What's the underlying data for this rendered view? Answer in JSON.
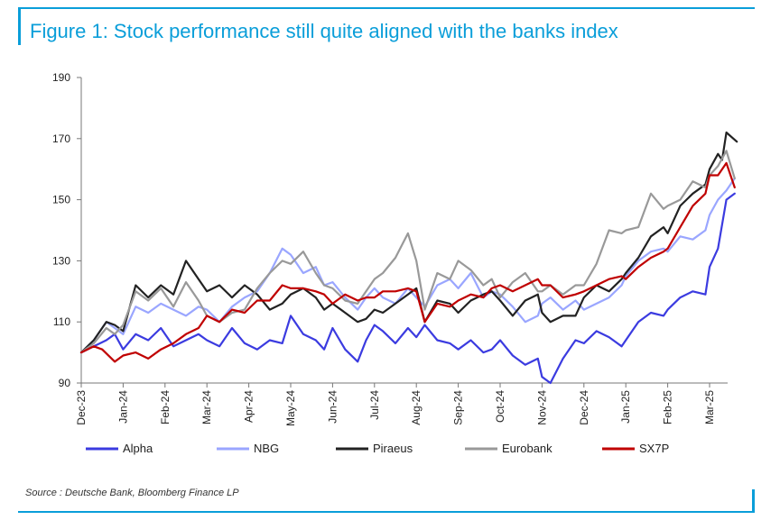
{
  "header": {
    "title": "Figure 1: Stock performance still quite aligned with the banks index"
  },
  "footer": {
    "source": "Source : Deutsche Bank, Bloomberg Finance LP"
  },
  "chart_data": {
    "type": "line",
    "title": "Figure 1: Stock performance still quite aligned with the banks index",
    "ylim": [
      90,
      190
    ],
    "yticks": [
      90,
      110,
      130,
      150,
      170,
      190
    ],
    "xlim": [
      0,
      15.65
    ],
    "x_tick_labels": [
      "Dec-23",
      "Jan-24",
      "Feb-24",
      "Mar-24",
      "Apr-24",
      "May-24",
      "Jun-24",
      "Jul-24",
      "Aug-24",
      "Sep-24",
      "Oct-24",
      "Nov-24",
      "Dec-24",
      "Jan-25",
      "Feb-25",
      "Mar-25"
    ],
    "grid": false,
    "legend": "bottom",
    "series": [
      {
        "name": "Alpha",
        "color": "#3b3be0",
        "x": [
          0,
          0.3,
          0.6,
          0.8,
          1.0,
          1.3,
          1.6,
          1.9,
          2.2,
          2.5,
          2.8,
          3.0,
          3.3,
          3.6,
          3.9,
          4.2,
          4.5,
          4.8,
          5.0,
          5.3,
          5.6,
          5.8,
          6.0,
          6.3,
          6.6,
          6.8,
          7.0,
          7.2,
          7.5,
          7.8,
          8.0,
          8.2,
          8.5,
          8.8,
          9.0,
          9.3,
          9.6,
          9.8,
          10.0,
          10.3,
          10.6,
          10.9,
          11.0,
          11.2,
          11.5,
          11.8,
          12.0,
          12.3,
          12.6,
          12.9,
          13.0,
          13.3,
          13.6,
          13.9,
          14.0,
          14.3,
          14.6,
          14.9,
          15.0,
          15.2,
          15.4,
          15.6
        ],
        "y": [
          100,
          102,
          104,
          106,
          101,
          106,
          104,
          108,
          102,
          104,
          106,
          104,
          102,
          108,
          103,
          101,
          104,
          103,
          112,
          106,
          104,
          101,
          108,
          101,
          97,
          104,
          109,
          107,
          103,
          108,
          105,
          109,
          104,
          103,
          101,
          104,
          100,
          101,
          104,
          99,
          96,
          98,
          92,
          90,
          98,
          104,
          103,
          107,
          105,
          102,
          104,
          110,
          113,
          112,
          114,
          118,
          120,
          119,
          128,
          134,
          150,
          152
        ]
      },
      {
        "name": "NBG",
        "color": "#9aa6ff",
        "x": [
          0,
          0.3,
          0.6,
          0.8,
          1.0,
          1.3,
          1.6,
          1.9,
          2.2,
          2.5,
          2.8,
          3.0,
          3.3,
          3.6,
          3.9,
          4.2,
          4.5,
          4.8,
          5.0,
          5.3,
          5.6,
          5.8,
          6.0,
          6.3,
          6.6,
          6.8,
          7.0,
          7.2,
          7.5,
          7.8,
          8.0,
          8.2,
          8.5,
          8.8,
          9.0,
          9.3,
          9.6,
          9.8,
          10.0,
          10.3,
          10.6,
          10.9,
          11.0,
          11.2,
          11.5,
          11.8,
          12.0,
          12.3,
          12.6,
          12.9,
          13.0,
          13.3,
          13.6,
          13.9,
          14.0,
          14.3,
          14.6,
          14.9,
          15.0,
          15.2,
          15.4,
          15.6
        ],
        "y": [
          100,
          104,
          110,
          108,
          106,
          115,
          113,
          116,
          114,
          112,
          115,
          114,
          110,
          115,
          118,
          120,
          126,
          134,
          132,
          126,
          128,
          122,
          123,
          118,
          114,
          118,
          121,
          118,
          116,
          121,
          118,
          115,
          122,
          124,
          121,
          126,
          118,
          120,
          119,
          115,
          110,
          112,
          116,
          118,
          114,
          117,
          114,
          116,
          118,
          122,
          125,
          130,
          133,
          134,
          133,
          138,
          137,
          140,
          145,
          150,
          153,
          157
        ]
      },
      {
        "name": "Piraeus",
        "color": "#222222",
        "x": [
          0,
          0.3,
          0.6,
          0.8,
          1.0,
          1.3,
          1.6,
          1.9,
          2.2,
          2.5,
          2.8,
          3.0,
          3.3,
          3.6,
          3.9,
          4.2,
          4.5,
          4.8,
          5.0,
          5.3,
          5.6,
          5.8,
          6.0,
          6.3,
          6.6,
          6.8,
          7.0,
          7.2,
          7.5,
          7.8,
          8.0,
          8.2,
          8.5,
          8.8,
          9.0,
          9.3,
          9.6,
          9.8,
          10.0,
          10.3,
          10.6,
          10.9,
          11.0,
          11.2,
          11.5,
          11.8,
          12.0,
          12.3,
          12.6,
          12.9,
          13.0,
          13.3,
          13.6,
          13.9,
          14.0,
          14.3,
          14.6,
          14.9,
          15.0,
          15.2,
          15.3,
          15.4,
          15.65
        ],
        "y": [
          100,
          104,
          110,
          109,
          107,
          122,
          118,
          122,
          119,
          130,
          124,
          120,
          122,
          118,
          122,
          119,
          114,
          116,
          119,
          121,
          118,
          114,
          116,
          113,
          110,
          111,
          114,
          113,
          116,
          119,
          121,
          110,
          117,
          116,
          113,
          117,
          119,
          120,
          117,
          112,
          117,
          119,
          113,
          110,
          112,
          112,
          118,
          122,
          120,
          124,
          126,
          131,
          138,
          141,
          139,
          148,
          152,
          155,
          160,
          165,
          163,
          172,
          169
        ]
      },
      {
        "name": "Eurobank",
        "color": "#999999",
        "x": [
          0,
          0.3,
          0.6,
          0.8,
          1.0,
          1.3,
          1.6,
          1.9,
          2.2,
          2.5,
          2.8,
          3.0,
          3.3,
          3.6,
          3.9,
          4.2,
          4.5,
          4.8,
          5.0,
          5.3,
          5.6,
          5.8,
          6.0,
          6.3,
          6.6,
          6.8,
          7.0,
          7.2,
          7.5,
          7.8,
          8.0,
          8.2,
          8.5,
          8.8,
          9.0,
          9.3,
          9.6,
          9.8,
          10.0,
          10.3,
          10.6,
          10.9,
          11.0,
          11.2,
          11.5,
          11.8,
          12.0,
          12.3,
          12.6,
          12.9,
          13.0,
          13.3,
          13.6,
          13.9,
          14.0,
          14.3,
          14.6,
          14.9,
          15.0,
          15.2,
          15.4,
          15.6
        ],
        "y": [
          100,
          103,
          108,
          106,
          109,
          120,
          117,
          121,
          115,
          123,
          117,
          112,
          110,
          113,
          114,
          121,
          126,
          130,
          129,
          133,
          126,
          122,
          121,
          117,
          116,
          120,
          124,
          126,
          131,
          139,
          130,
          114,
          126,
          124,
          130,
          127,
          122,
          124,
          118,
          123,
          126,
          120,
          120,
          122,
          119,
          122,
          122,
          129,
          140,
          139,
          140,
          141,
          152,
          147,
          148,
          150,
          156,
          154,
          158,
          161,
          166,
          157
        ]
      },
      {
        "name": "SX7P",
        "color": "#c00000",
        "x": [
          0,
          0.3,
          0.5,
          0.8,
          1.0,
          1.3,
          1.6,
          1.9,
          2.2,
          2.5,
          2.8,
          3.0,
          3.3,
          3.6,
          3.9,
          4.2,
          4.5,
          4.8,
          5.0,
          5.3,
          5.6,
          5.8,
          6.0,
          6.3,
          6.6,
          6.8,
          7.0,
          7.2,
          7.5,
          7.8,
          8.0,
          8.2,
          8.5,
          8.8,
          9.0,
          9.3,
          9.6,
          9.8,
          10.0,
          10.3,
          10.6,
          10.9,
          11.0,
          11.2,
          11.5,
          11.8,
          12.0,
          12.3,
          12.6,
          12.9,
          13.0,
          13.3,
          13.6,
          13.9,
          14.0,
          14.3,
          14.6,
          14.9,
          15.0,
          15.2,
          15.4,
          15.6
        ],
        "y": [
          100,
          102,
          101,
          97,
          99,
          100,
          98,
          101,
          103,
          106,
          108,
          112,
          110,
          114,
          113,
          117,
          117,
          122,
          121,
          121,
          120,
          119,
          116,
          119,
          117,
          118,
          118,
          120,
          120,
          121,
          120,
          110,
          116,
          115,
          117,
          119,
          118,
          121,
          122,
          120,
          122,
          124,
          122,
          122,
          118,
          119,
          120,
          122,
          124,
          125,
          124,
          128,
          131,
          133,
          134,
          141,
          148,
          152,
          158,
          158,
          162,
          154
        ]
      }
    ]
  }
}
